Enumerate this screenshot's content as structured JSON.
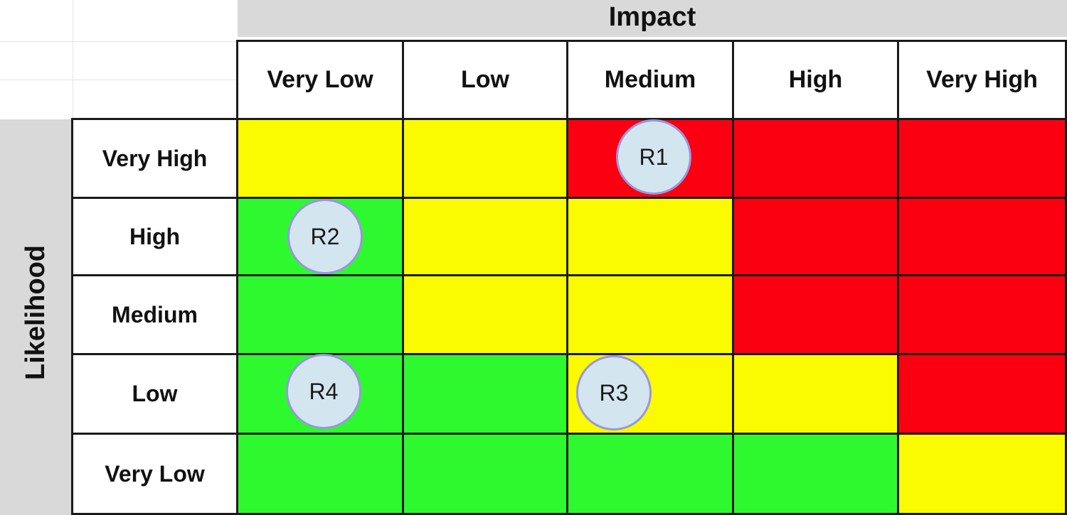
{
  "impact_label": "Impact",
  "likelihood_label": "Likelihood",
  "impact_levels": [
    "Very Low",
    "Low",
    "Medium",
    "High",
    "Very High"
  ],
  "likelihood_levels": [
    "Very High",
    "High",
    "Medium",
    "Low",
    "Very Low"
  ],
  "matrix_colors": [
    [
      "yellow",
      "yellow",
      "red",
      "red",
      "red"
    ],
    [
      "green",
      "yellow",
      "yellow",
      "red",
      "red"
    ],
    [
      "green",
      "yellow",
      "yellow",
      "red",
      "red"
    ],
    [
      "green",
      "green",
      "yellow",
      "yellow",
      "red"
    ],
    [
      "green",
      "green",
      "green",
      "green",
      "yellow"
    ]
  ],
  "colors": {
    "green": "#2ef92e",
    "yellow": "#fafa00",
    "red": "#fa0010"
  },
  "risks": [
    {
      "label": "R1",
      "likelihood": "Very High",
      "impact": "Medium"
    },
    {
      "label": "R2",
      "likelihood": "High",
      "impact": "Very Low"
    },
    {
      "label": "R3",
      "likelihood": "Low",
      "impact": "Medium"
    },
    {
      "label": "R4",
      "likelihood": "Low",
      "impact": "Very Low"
    }
  ]
}
